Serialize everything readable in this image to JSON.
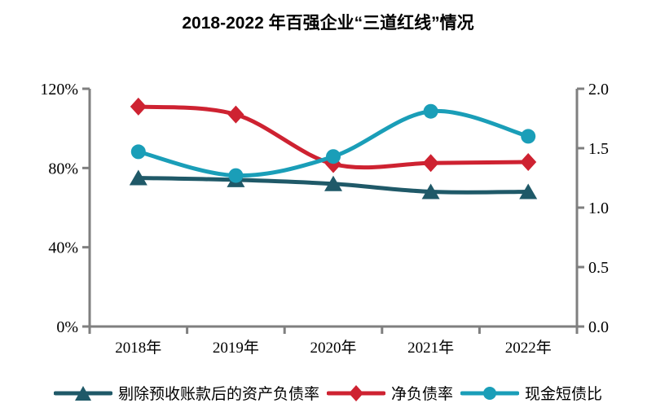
{
  "title": "2018-2022 年百强企业“三道红线”情况",
  "chart_data": {
    "type": "line",
    "categories": [
      "2018年",
      "2019年",
      "2020年",
      "2021年",
      "2022年"
    ],
    "series": [
      {
        "name": "剔除预收账款后的资产负债率",
        "axis": "left",
        "marker": "triangle",
        "color": "#1F5968",
        "values": [
          75,
          74,
          72,
          68,
          68
        ],
        "unit": "%"
      },
      {
        "name": "净负债率",
        "axis": "left",
        "marker": "diamond",
        "color": "#CE2231",
        "values": [
          111,
          107,
          82,
          82.5,
          83
        ],
        "unit": "%"
      },
      {
        "name": "现金短债比",
        "axis": "right",
        "marker": "circle",
        "color": "#1A9EB8",
        "values": [
          1.47,
          1.27,
          1.43,
          1.81,
          1.6
        ],
        "unit": ""
      }
    ],
    "left_axis": {
      "min": 0,
      "max": 120,
      "tick_values": [
        0,
        40,
        80,
        120
      ],
      "tick_labels": [
        "0%",
        "40%",
        "80%",
        "120%"
      ]
    },
    "right_axis": {
      "min": 0,
      "max": 2.0,
      "tick_values": [
        0,
        0.5,
        1.0,
        1.5,
        2.0
      ],
      "tick_labels": [
        "0.0",
        "0.5",
        "1.0",
        "1.5",
        "2.0"
      ]
    },
    "grid": false,
    "legend_position": "bottom",
    "smoothed_lines": true
  },
  "colors": {
    "axis": "#7F7F7F",
    "text": "#000000",
    "background": "#FFFFFF"
  }
}
